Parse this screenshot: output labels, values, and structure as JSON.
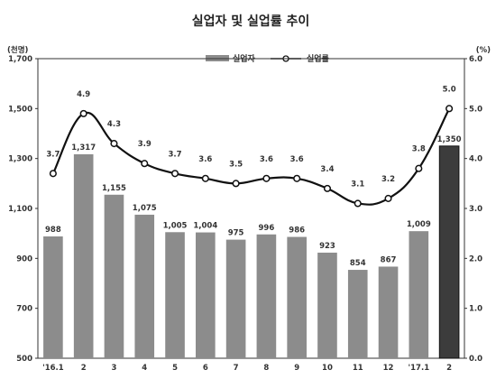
{
  "chart_data": {
    "type": "bar+line",
    "title": "실업자 및 실업률 추이",
    "left_unit": "(천명)",
    "right_unit": "(%)",
    "categories": [
      "'16.1",
      "2",
      "3",
      "4",
      "5",
      "6",
      "7",
      "8",
      "9",
      "10",
      "11",
      "12",
      "'17.1",
      "2"
    ],
    "left_axis": {
      "min": 500,
      "max": 1700,
      "ticks": [
        "500",
        "700",
        "900",
        "1,100",
        "1,300",
        "1,500",
        "1,700"
      ],
      "tick_values": [
        500,
        700,
        900,
        1100,
        1300,
        1500,
        1700
      ]
    },
    "right_axis": {
      "min": 0,
      "max": 6,
      "ticks": [
        "0.0",
        "1.0",
        "2.0",
        "3.0",
        "4.0",
        "5.0",
        "6.0"
      ],
      "tick_values": [
        0,
        1,
        2,
        3,
        4,
        5,
        6
      ]
    },
    "series": [
      {
        "name": "실업자",
        "type": "bar",
        "axis": "left",
        "values": [
          988,
          1317,
          1155,
          1075,
          1005,
          1004,
          975,
          996,
          986,
          923,
          854,
          867,
          1009,
          1350
        ],
        "labels": [
          "988",
          "1,317",
          "1,155",
          "1,075",
          "1,005",
          "1,004",
          "975",
          "996",
          "986",
          "923",
          "854",
          "867",
          "1,009",
          "1,350"
        ],
        "color": "#8c8c8c",
        "highlight_color": "#3c3c3c",
        "highlight_index": 13
      },
      {
        "name": "실업률",
        "type": "line",
        "axis": "right",
        "values": [
          3.7,
          4.9,
          4.3,
          3.9,
          3.7,
          3.6,
          3.5,
          3.6,
          3.6,
          3.4,
          3.1,
          3.2,
          3.8,
          5.0
        ],
        "labels": [
          "3.7",
          "4.9",
          "4.3",
          "3.9",
          "3.7",
          "3.6",
          "3.5",
          "3.6",
          "3.6",
          "3.4",
          "3.1",
          "3.2",
          "3.8",
          "5.0"
        ],
        "color": "#111111"
      }
    ],
    "legend_placement": "top-right",
    "grid": false
  }
}
